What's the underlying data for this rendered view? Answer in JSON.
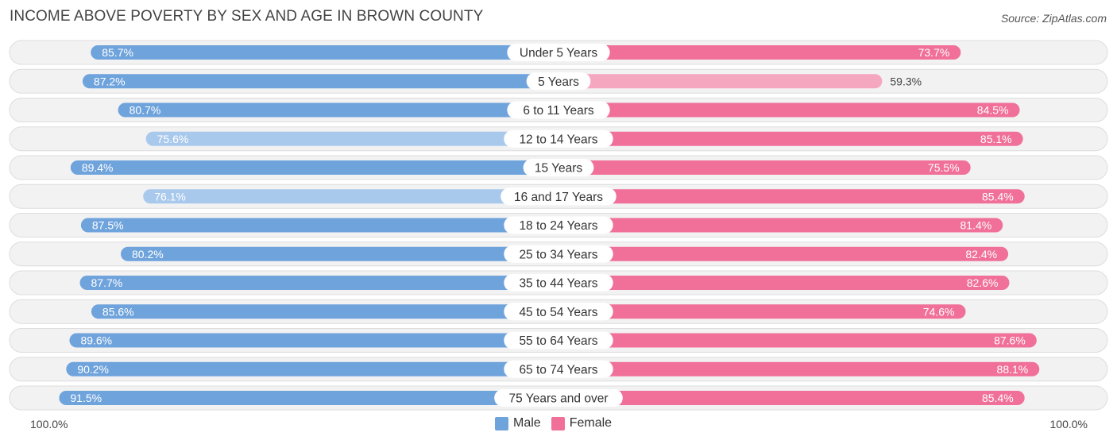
{
  "title": "INCOME ABOVE POVERTY BY SEX AND AGE IN BROWN COUNTY",
  "source": "Source: ZipAtlas.com",
  "colors": {
    "male_strong": "#6fa3dc",
    "male_light": "#a9c9ec",
    "female_strong": "#f07099",
    "female_light": "#f6a7c0",
    "row_bg": "#f2f2f2",
    "row_border": "#dddddd"
  },
  "legend": {
    "male": "Male",
    "female": "Female"
  },
  "axis": {
    "left_label": "100.0%",
    "right_label": "100.0%"
  },
  "chart_data": {
    "type": "bar",
    "orientation": "horizontal-diverging",
    "title": "INCOME ABOVE POVERTY BY SEX AND AGE IN BROWN COUNTY",
    "xlim": [
      0,
      100
    ],
    "unit": "%",
    "categories": [
      "Under 5 Years",
      "5 Years",
      "6 to 11 Years",
      "12 to 14 Years",
      "15 Years",
      "16 and 17 Years",
      "18 to 24 Years",
      "25 to 34 Years",
      "35 to 44 Years",
      "45 to 54 Years",
      "55 to 64 Years",
      "65 to 74 Years",
      "75 Years and over"
    ],
    "series": [
      {
        "name": "Male",
        "side": "left",
        "values": [
          85.7,
          87.2,
          80.7,
          75.6,
          89.4,
          76.1,
          87.5,
          80.2,
          87.7,
          85.6,
          89.6,
          90.2,
          91.5
        ],
        "labels": [
          "85.7%",
          "87.2%",
          "80.7%",
          "75.6%",
          "89.4%",
          "76.1%",
          "87.5%",
          "80.2%",
          "87.7%",
          "85.6%",
          "89.6%",
          "90.2%",
          "91.5%"
        ]
      },
      {
        "name": "Female",
        "side": "right",
        "values": [
          73.7,
          59.3,
          84.5,
          85.1,
          75.5,
          85.4,
          81.4,
          82.4,
          82.6,
          74.6,
          87.6,
          88.1,
          85.4
        ],
        "labels": [
          "73.7%",
          "59.3%",
          "84.5%",
          "85.1%",
          "75.5%",
          "85.4%",
          "81.4%",
          "82.4%",
          "82.6%",
          "74.6%",
          "87.6%",
          "88.1%",
          "85.4%"
        ]
      }
    ],
    "legend_position": "bottom-center"
  }
}
